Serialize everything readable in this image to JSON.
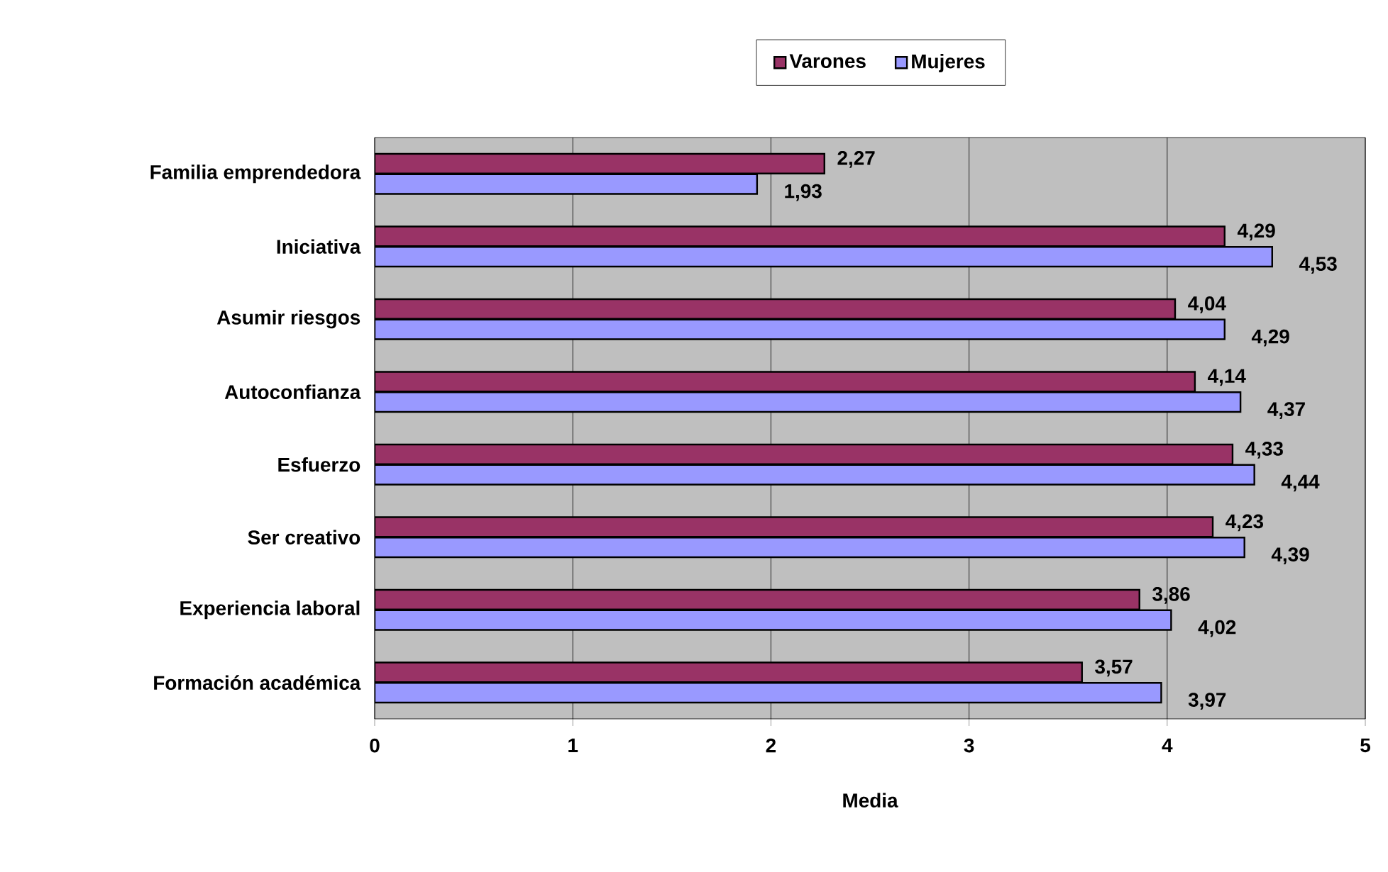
{
  "chart_data": {
    "type": "bar",
    "orientation": "horizontal",
    "xlabel": "Media",
    "categories": [
      "Familia emprendedora",
      "Iniciativa",
      "Asumir riesgos",
      "Autoconfianza",
      "Esfuerzo",
      "Ser creativo",
      "Experiencia laboral",
      "Formación académica"
    ],
    "series": [
      {
        "name": "Varones",
        "color": "#993366",
        "values": [
          2.27,
          4.29,
          4.04,
          4.14,
          4.33,
          4.23,
          3.86,
          3.57
        ],
        "value_labels": [
          "2,27",
          "4,29",
          "4,04",
          "4,14",
          "4,33",
          "4,23",
          "3,86",
          "3,57"
        ]
      },
      {
        "name": "Mujeres",
        "color": "#9999ff",
        "values": [
          1.93,
          4.53,
          4.29,
          4.37,
          4.44,
          4.39,
          4.02,
          3.97
        ],
        "value_labels": [
          "1,93",
          "4,53",
          "4,29",
          "4,37",
          "4,44",
          "4,39",
          "4,02",
          "3,97"
        ]
      }
    ],
    "xlim": [
      0,
      5
    ],
    "xticks": [
      0,
      1,
      2,
      3,
      4,
      5
    ],
    "grid": "x",
    "legend": "top"
  }
}
